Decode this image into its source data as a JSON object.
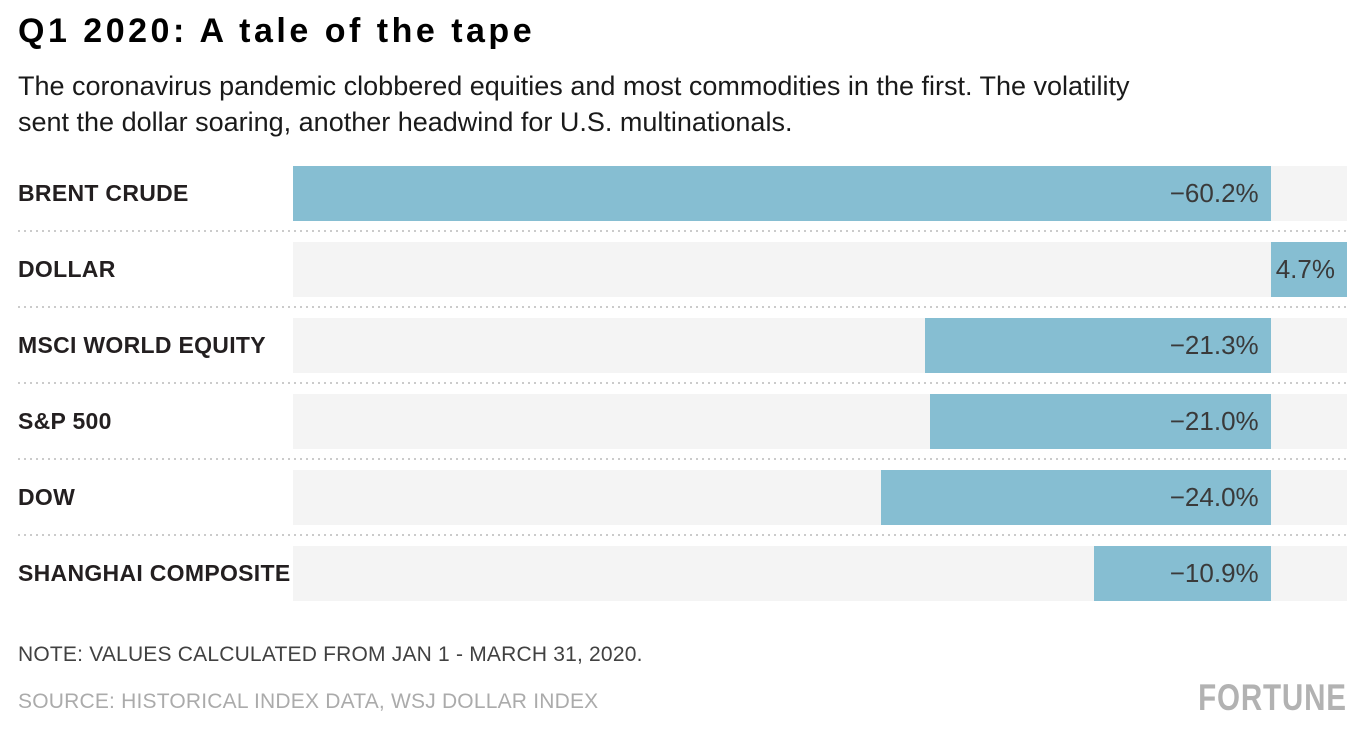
{
  "header": {
    "title": "Q1 2020: A tale of the tape",
    "subtitle": "The coronavirus pandemic clobbered equities and most commodities in the first. The volatility\nsent the dollar soaring, another headwind for U.S. multinationals."
  },
  "chart_data": {
    "type": "bar",
    "orientation": "horizontal",
    "categories": [
      "BRENT CRUDE",
      "DOLLAR",
      "MSCI WORLD EQUITY",
      "S&P 500",
      "DOW",
      "SHANGHAI COMPOSITE"
    ],
    "values": [
      -60.2,
      4.7,
      -21.3,
      -21.0,
      -24.0,
      -10.9
    ],
    "value_labels": [
      "−60.2%",
      "4.7%",
      "−21.3%",
      "−21.0%",
      "−24.0%",
      "−10.9%"
    ],
    "xlim": [
      -60.2,
      4.7
    ],
    "title": "Q1 2020: A tale of the tape",
    "xlabel": "",
    "ylabel": "",
    "grid": false,
    "legend": false,
    "bar_color": "#86bed2",
    "track_color": "#f4f4f4"
  },
  "footer": {
    "note": "NOTE: VALUES CALCULATED FROM JAN 1 - MARCH 31, 2020.",
    "source": "SOURCE: HISTORICAL INDEX DATA, WSJ DOLLAR INDEX",
    "brand": "FORTUNE"
  },
  "colors": {
    "bar": "#86bed2",
    "track": "#f4f4f4",
    "value_text": "#3a3a3a",
    "label_text": "#231f20",
    "note_text": "#414141",
    "source_text": "#ababab",
    "brand_text": "#b2b2b2",
    "separator": "#cbcbcb"
  }
}
